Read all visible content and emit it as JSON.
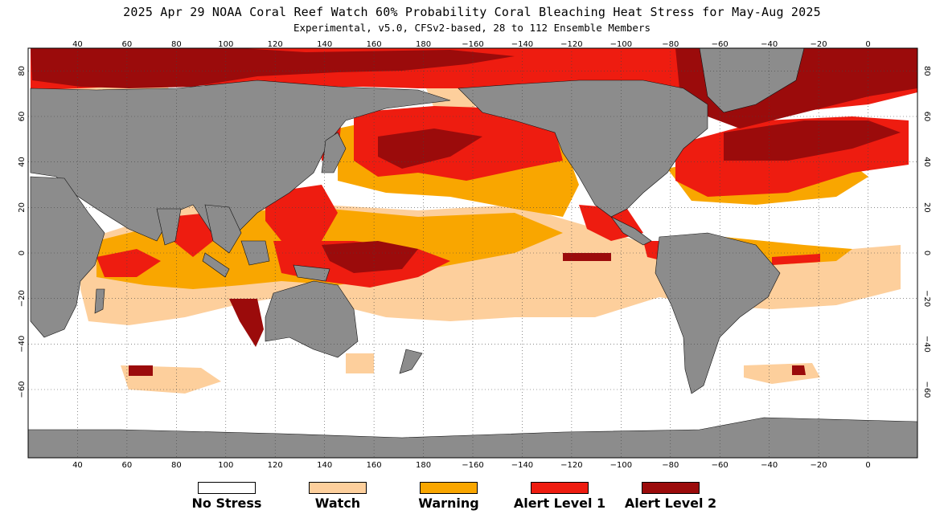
{
  "header": {
    "title": "2025 Apr 29 NOAA Coral Reef Watch 60% Probability Coral Bleaching Heat Stress for May-Aug 2025",
    "subtitle": "Experimental, v5.0, CFSv2-based, 28 to 112 Ensemble Members"
  },
  "map": {
    "projection": "equirectangular",
    "lon_range": [
      20,
      380
    ],
    "lat_range": [
      -90,
      90
    ],
    "lon_ticks": [
      "40",
      "60",
      "80",
      "100",
      "120",
      "140",
      "160",
      "180",
      "−160",
      "−140",
      "−120",
      "−100",
      "−80",
      "−60",
      "−40",
      "−20",
      "0"
    ],
    "lat_ticks": [
      "80",
      "60",
      "40",
      "20",
      "0",
      "−20",
      "−40",
      "−60"
    ],
    "grid": true,
    "land_color": "#8c8c8c",
    "ocean_color": "#ffffff"
  },
  "legend": [
    {
      "label": "No Stress",
      "color": "#ffffff"
    },
    {
      "label": "Watch",
      "color": "#fdcf9c"
    },
    {
      "label": "Warning",
      "color": "#f9a600"
    },
    {
      "label": "Alert Level 1",
      "color": "#ee1c10"
    },
    {
      "label": "Alert Level 2",
      "color": "#9b0b0b"
    }
  ]
}
